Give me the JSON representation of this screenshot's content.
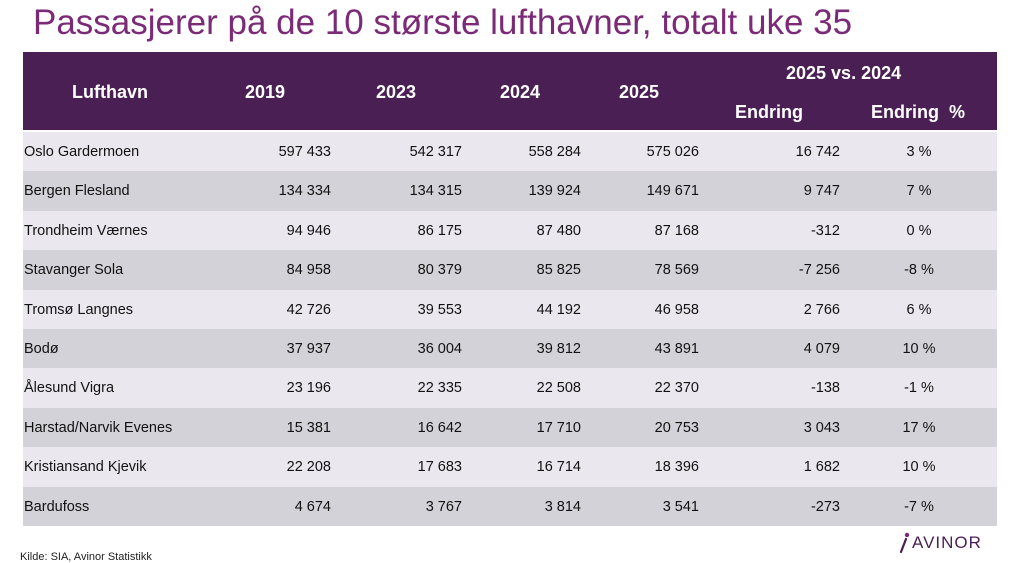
{
  "title": "Passasjerer på de 10 største lufthavner, totalt uke 35",
  "source": "Kilde: SIA, Avinor Statistikk",
  "logo_text": "AVINOR",
  "colors": {
    "title": "#7b2a77",
    "header_bg": "#4a1f54",
    "row_odd": "#eae8ee",
    "row_even": "#d3d2d8"
  },
  "header": {
    "airport": "Lufthavn",
    "y2019": "2019",
    "y2023": "2023",
    "y2024": "2024",
    "y2025": "2025",
    "comparison": "2025 vs. 2024",
    "change": "Endring",
    "change_pct": "Endring  %"
  },
  "chart_data": {
    "type": "table",
    "title": "Passasjerer på de 10 største lufthavner, totalt uke 35",
    "columns": [
      "Lufthavn",
      "2019",
      "2023",
      "2024",
      "2025",
      "Endring",
      "Endring  %"
    ],
    "group_header": "2025 vs. 2024",
    "rows": [
      {
        "airport": "Oslo Gardermoen",
        "y2019": "597 433",
        "y2023": "542 317",
        "y2024": "558 284",
        "y2025": "575 026",
        "change": "16 742",
        "pct": "3 %"
      },
      {
        "airport": "Bergen Flesland",
        "y2019": "134 334",
        "y2023": "134 315",
        "y2024": "139 924",
        "y2025": "149 671",
        "change": "9 747",
        "pct": "7 %"
      },
      {
        "airport": "Trondheim Værnes",
        "y2019": "94 946",
        "y2023": "86 175",
        "y2024": "87 480",
        "y2025": "87 168",
        "change": "-312",
        "pct": "0 %"
      },
      {
        "airport": "Stavanger Sola",
        "y2019": "84 958",
        "y2023": "80 379",
        "y2024": "85 825",
        "y2025": "78 569",
        "change": "-7 256",
        "pct": "-8 %"
      },
      {
        "airport": "Tromsø Langnes",
        "y2019": "42 726",
        "y2023": "39 553",
        "y2024": "44 192",
        "y2025": "46 958",
        "change": "2 766",
        "pct": "6 %"
      },
      {
        "airport": "Bodø",
        "y2019": "37 937",
        "y2023": "36 004",
        "y2024": "39 812",
        "y2025": "43 891",
        "change": "4 079",
        "pct": "10 %"
      },
      {
        "airport": "Ålesund Vigra",
        "y2019": "23 196",
        "y2023": "22 335",
        "y2024": "22 508",
        "y2025": "22 370",
        "change": "-138",
        "pct": "-1 %"
      },
      {
        "airport": "Harstad/Narvik Evenes",
        "y2019": "15 381",
        "y2023": "16 642",
        "y2024": "17 710",
        "y2025": "20 753",
        "change": "3 043",
        "pct": "17 %"
      },
      {
        "airport": "Kristiansand Kjevik",
        "y2019": "22 208",
        "y2023": "17 683",
        "y2024": "16 714",
        "y2025": "18 396",
        "change": "1 682",
        "pct": "10 %"
      },
      {
        "airport": "Bardufoss",
        "y2019": "4 674",
        "y2023": "3 767",
        "y2024": "3 814",
        "y2025": "3 541",
        "change": "-273",
        "pct": "-7 %"
      }
    ]
  }
}
